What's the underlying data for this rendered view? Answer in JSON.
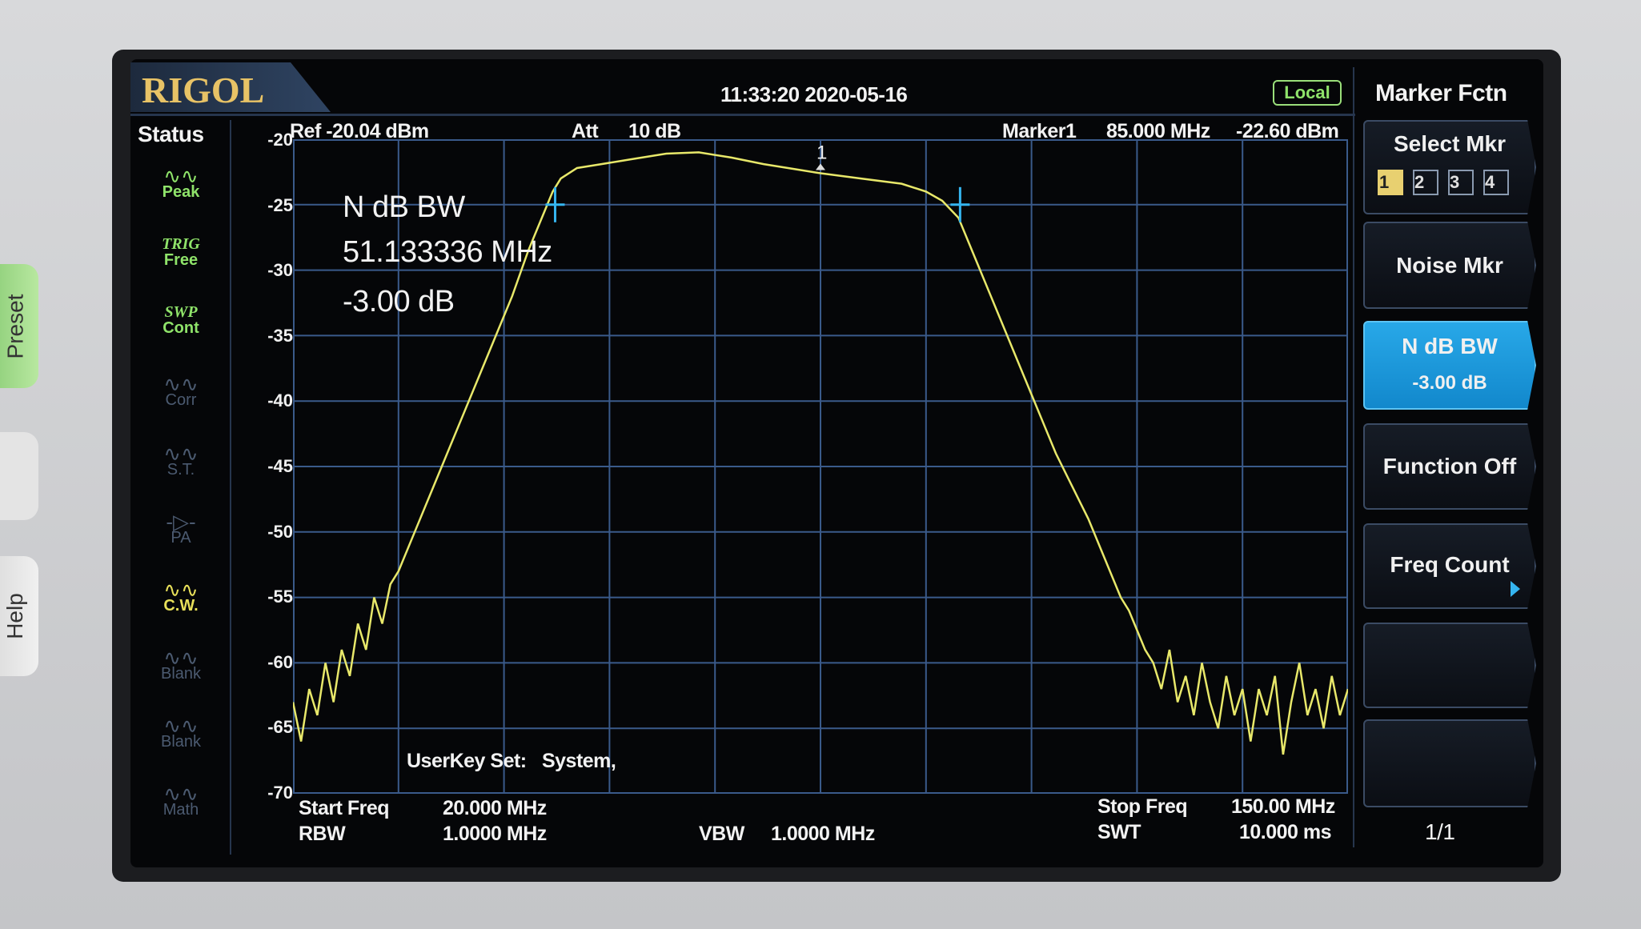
{
  "hardware_buttons": {
    "preset": "Preset",
    "help": "Help"
  },
  "header": {
    "logo": "RIGOL",
    "datetime": "11:33:20 2020-05-16",
    "remote_status": "Local"
  },
  "status": {
    "title": "Status",
    "items": [
      {
        "label": "Peak",
        "icon": "peak-icon",
        "color": "#8fe36a",
        "active": true
      },
      {
        "top": "TRIG",
        "label": "Free",
        "color": "#8fe36a",
        "active": true
      },
      {
        "top": "SWP",
        "label": "Cont",
        "color": "#8fe36a",
        "active": true
      },
      {
        "label": "Corr",
        "icon": "corr-icon",
        "color": "#4b5a70",
        "active": false
      },
      {
        "label": "S.T.",
        "icon": "st-icon",
        "color": "#4b5a70",
        "active": false
      },
      {
        "label": "PA",
        "icon": "pa-icon",
        "color": "#4b5a70",
        "active": false
      },
      {
        "label": "C.W.",
        "icon": "cw-icon",
        "color": "#e8e05a",
        "active": true
      },
      {
        "label": "Blank",
        "icon": "blank-icon",
        "color": "#4b5a70",
        "active": false
      },
      {
        "label": "Blank",
        "icon": "blank-icon",
        "color": "#4b5a70",
        "active": false
      },
      {
        "label": "Math",
        "icon": "math-icon",
        "color": "#4b5a70",
        "active": false
      }
    ]
  },
  "top_info": {
    "ref": "Ref -20.04 dBm",
    "att_label": "Att",
    "att_value": "10 dB",
    "marker_label": "Marker1",
    "marker_freq": "85.000 MHz",
    "marker_amp": "-22.60 dBm"
  },
  "annotation": {
    "title": "N dB BW",
    "bandwidth": "51.133336 MHz",
    "ndb": "-3.00 dB",
    "userkey": "UserKey Set:   System,"
  },
  "bottom_info": {
    "start_label": "Start Freq",
    "start_value": "20.000 MHz",
    "rbw_label": "RBW",
    "rbw_value": "1.0000 MHz",
    "vbw_label": "VBW",
    "vbw_value": "1.0000 MHz",
    "stop_label": "Stop Freq",
    "stop_value": "150.00 MHz",
    "swt_label": "SWT",
    "swt_value": "10.000 ms"
  },
  "softkeys": {
    "title": "Marker Fctn",
    "select_mkr": "Select Mkr",
    "markers": [
      "1",
      "2",
      "3",
      "4"
    ],
    "selected_marker": "1",
    "noise_mkr": "Noise Mkr",
    "ndb_bw": "N dB BW",
    "ndb_bw_value": "-3.00 dB",
    "function_off": "Function Off",
    "freq_count": "Freq Count",
    "page": "1/1"
  },
  "colors": {
    "trace": "#e8e86a",
    "grid": "#3a5a8a",
    "marker": "#35b5f0",
    "active_key": "#1c98dc"
  },
  "chart_data": {
    "type": "line",
    "xlim": [
      20,
      150
    ],
    "ylim": [
      -70,
      -20
    ],
    "x_unit": "MHz",
    "y_unit": "dBm",
    "y_ticks": [
      "-20",
      "-25",
      "-30",
      "-35",
      "-40",
      "-45",
      "-50",
      "-55",
      "-60",
      "-65",
      "-70"
    ],
    "grid": true,
    "series": [
      {
        "x": [
          20,
          21,
          22,
          23,
          24,
          25,
          26,
          27,
          28,
          29,
          30,
          31,
          32,
          33,
          35,
          37,
          39,
          41,
          43,
          45,
          47,
          49,
          50,
          51,
          52,
          53,
          55,
          58,
          62,
          66,
          70,
          74,
          78,
          82,
          85,
          90,
          95,
          98,
          100,
          102,
          104,
          106,
          108,
          110,
          112,
          114,
          116,
          118,
          120,
          122,
          123,
          124,
          125,
          126,
          127,
          128,
          129,
          130,
          131,
          132,
          133,
          134,
          135,
          136,
          137,
          138,
          139,
          140,
          141,
          142,
          143,
          144,
          145,
          146,
          147,
          148,
          149,
          150
        ],
        "y": [
          -63,
          -66,
          -62,
          -64,
          -60,
          -63,
          -59,
          -61,
          -57,
          -59,
          -55,
          -57,
          -54,
          -53,
          -50,
          -47,
          -44,
          -41,
          -38,
          -35,
          -32,
          -28.5,
          -27,
          -25.5,
          -24,
          -23,
          -22.2,
          -21.9,
          -21.5,
          -21.1,
          -21,
          -21.4,
          -21.9,
          -22.3,
          -22.6,
          -23,
          -23.4,
          -24,
          -24.7,
          -26,
          -29,
          -32,
          -35,
          -38,
          -41,
          -44,
          -46.5,
          -49,
          -52,
          -55,
          -56,
          -57.5,
          -59,
          -60,
          -62,
          -59,
          -63,
          -61,
          -64,
          -60,
          -63,
          -65,
          -61,
          -64,
          -62,
          -66,
          -62,
          -64,
          -61,
          -67,
          -63,
          -60,
          -64,
          -62,
          -65,
          -61,
          -64,
          -62
        ]
      }
    ],
    "markers": [
      {
        "label": "1",
        "x": 85,
        "y": -22.6
      },
      {
        "label": "",
        "x": 52.3,
        "y": -25
      },
      {
        "label": "",
        "x": 102.2,
        "y": -25
      }
    ]
  }
}
